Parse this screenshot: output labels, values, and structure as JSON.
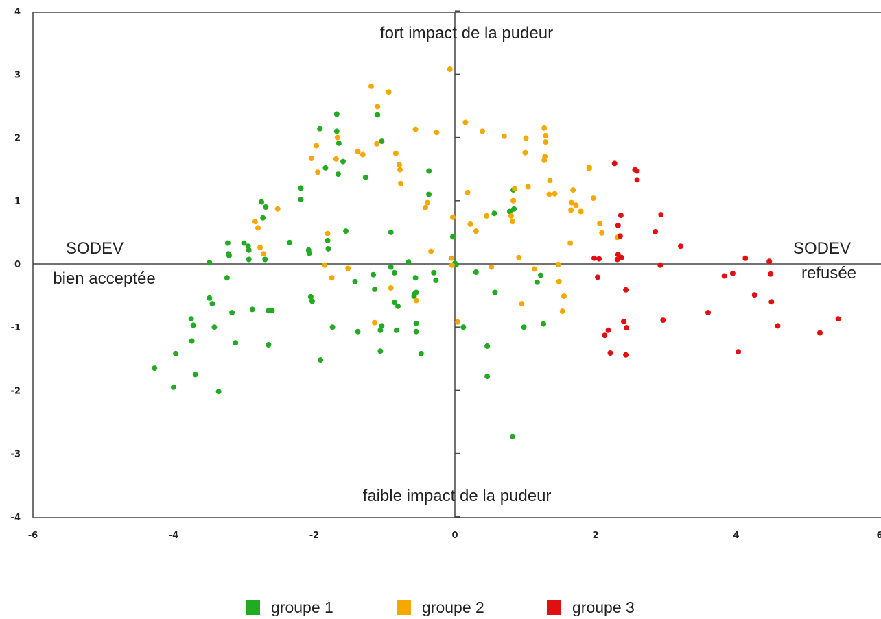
{
  "chart_data": {
    "type": "scatter",
    "title": "",
    "xlabel": "",
    "ylabel": "",
    "xlim": [
      -6,
      6
    ],
    "ylim": [
      -4,
      4
    ],
    "x_ticks": [
      "-6",
      "-4",
      "-2",
      "0",
      "2",
      "4",
      "6"
    ],
    "y_ticks": [
      "4",
      "3",
      "2",
      "1",
      "0",
      "-1",
      "-2",
      "-3",
      "-4"
    ],
    "grid": false,
    "legend_position": "bottom",
    "annotations": {
      "top": "fort impact de la pudeur",
      "bottom": "faible impact de la pudeur",
      "left_line1": "SODEV",
      "left_line2": "bien acceptée",
      "right_line1": "SODEV",
      "right_line2": "refusée"
    },
    "series": [
      {
        "name": "groupe 1",
        "color": "#22aa22",
        "points": [
          [
            -4.27,
            -1.65
          ],
          [
            -4.0,
            -1.95
          ],
          [
            -3.97,
            -1.42
          ],
          [
            -3.75,
            -0.87
          ],
          [
            -3.72,
            -0.97
          ],
          [
            -3.74,
            -1.22
          ],
          [
            -3.69,
            -1.75
          ],
          [
            -3.49,
            0.02
          ],
          [
            -3.49,
            -0.54
          ],
          [
            -3.45,
            -0.63
          ],
          [
            -3.42,
            -1.0
          ],
          [
            -3.36,
            -2.02
          ],
          [
            -3.23,
            0.33
          ],
          [
            -3.22,
            0.16
          ],
          [
            -3.21,
            0.13
          ],
          [
            -3.24,
            -0.22
          ],
          [
            -3.17,
            -0.77
          ],
          [
            -3.12,
            -1.25
          ],
          [
            -3.0,
            0.33
          ],
          [
            -2.94,
            0.28
          ],
          [
            -2.93,
            0.22
          ],
          [
            -2.93,
            0.07
          ],
          [
            -2.88,
            -0.72
          ],
          [
            -2.75,
            0.98
          ],
          [
            -2.73,
            0.73
          ],
          [
            -2.69,
            0.9
          ],
          [
            -2.7,
            0.07
          ],
          [
            -2.65,
            -0.74
          ],
          [
            -2.6,
            -0.74
          ],
          [
            -2.65,
            -1.28
          ],
          [
            -2.35,
            0.34
          ],
          [
            -2.19,
            1.2
          ],
          [
            -2.19,
            1.02
          ],
          [
            -2.08,
            0.22
          ],
          [
            -2.07,
            0.17
          ],
          [
            -2.05,
            -0.52
          ],
          [
            -2.03,
            -0.59
          ],
          [
            -1.92,
            2.14
          ],
          [
            -1.91,
            -1.52
          ],
          [
            -1.84,
            1.52
          ],
          [
            -1.81,
            0.37
          ],
          [
            -1.8,
            0.24
          ],
          [
            -1.74,
            -1.0
          ],
          [
            -1.68,
            2.37
          ],
          [
            -1.68,
            2.1
          ],
          [
            -1.65,
            1.91
          ],
          [
            -1.66,
            1.42
          ],
          [
            -1.59,
            1.62
          ],
          [
            -1.55,
            0.52
          ],
          [
            -1.42,
            -0.28
          ],
          [
            -1.38,
            -1.07
          ],
          [
            -1.27,
            1.37
          ],
          [
            -1.16,
            -0.17
          ],
          [
            -1.14,
            -0.4
          ],
          [
            -1.1,
            2.36
          ],
          [
            -1.04,
            1.94
          ],
          [
            -1.04,
            -0.98
          ],
          [
            -1.06,
            -1.05
          ],
          [
            -1.06,
            -1.38
          ],
          [
            -0.91,
            0.5
          ],
          [
            -0.91,
            -0.05
          ],
          [
            -0.86,
            -0.61
          ],
          [
            -0.86,
            -0.14
          ],
          [
            -0.81,
            -0.67
          ],
          [
            -0.83,
            -1.05
          ],
          [
            -0.66,
            0.03
          ],
          [
            -0.56,
            -0.22
          ],
          [
            -0.57,
            -0.47
          ],
          [
            -0.58,
            -0.51
          ],
          [
            -0.55,
            -0.45
          ],
          [
            -0.55,
            -0.94
          ],
          [
            -0.55,
            -1.07
          ],
          [
            -0.48,
            -1.42
          ],
          [
            -0.37,
            1.47
          ],
          [
            -0.37,
            1.1
          ],
          [
            -0.3,
            -0.14
          ],
          [
            -0.27,
            -0.26
          ],
          [
            -0.03,
            0.43
          ],
          [
            0.0,
            0.01
          ],
          [
            0.02,
            -0.01
          ],
          [
            0.12,
            -1.0
          ],
          [
            0.3,
            -0.13
          ],
          [
            0.46,
            -1.3
          ],
          [
            0.46,
            -1.78
          ],
          [
            0.56,
            0.8
          ],
          [
            0.57,
            -0.45
          ],
          [
            0.78,
            0.83
          ],
          [
            0.83,
            1.17
          ],
          [
            0.84,
            0.87
          ],
          [
            0.82,
            -2.73
          ],
          [
            0.98,
            -1.0
          ],
          [
            1.17,
            -0.29
          ],
          [
            1.22,
            -0.18
          ],
          [
            1.26,
            -0.95
          ]
        ]
      },
      {
        "name": "groupe 2",
        "color": "#f5a800",
        "points": [
          [
            -2.84,
            0.67
          ],
          [
            -2.8,
            0.57
          ],
          [
            -2.77,
            0.26
          ],
          [
            -2.72,
            0.16
          ],
          [
            -2.52,
            0.87
          ],
          [
            -2.04,
            1.67
          ],
          [
            -1.97,
            1.87
          ],
          [
            -1.95,
            1.45
          ],
          [
            -1.85,
            -0.02
          ],
          [
            -1.81,
            0.48
          ],
          [
            -1.75,
            -0.22
          ],
          [
            -1.69,
            1.66
          ],
          [
            -1.67,
            2.0
          ],
          [
            -1.52,
            -0.07
          ],
          [
            -1.38,
            1.78
          ],
          [
            -1.31,
            1.73
          ],
          [
            -1.19,
            2.81
          ],
          [
            -1.14,
            -0.93
          ],
          [
            -1.1,
            2.49
          ],
          [
            -1.11,
            1.9
          ],
          [
            -0.91,
            -0.38
          ],
          [
            -0.94,
            2.72
          ],
          [
            -0.84,
            1.75
          ],
          [
            -0.79,
            1.57
          ],
          [
            -0.77,
            1.27
          ],
          [
            -0.78,
            1.49
          ],
          [
            -0.56,
            2.13
          ],
          [
            -0.55,
            -0.58
          ],
          [
            -0.42,
            0.89
          ],
          [
            -0.39,
            0.97
          ],
          [
            -0.34,
            0.2
          ],
          [
            -0.26,
            2.08
          ],
          [
            -0.03,
            0.74
          ],
          [
            -0.05,
            0.09
          ],
          [
            -0.04,
            -0.02
          ],
          [
            -0.07,
            3.08
          ],
          [
            0.04,
            -0.92
          ],
          [
            0.15,
            2.24
          ],
          [
            0.18,
            1.13
          ],
          [
            0.22,
            0.63
          ],
          [
            0.3,
            0.52
          ],
          [
            0.39,
            2.1
          ],
          [
            0.45,
            0.76
          ],
          [
            0.52,
            -0.05
          ],
          [
            0.7,
            2.02
          ],
          [
            0.8,
            0.76
          ],
          [
            0.82,
            0.67
          ],
          [
            0.83,
            1.0
          ],
          [
            0.85,
            1.19
          ],
          [
            0.91,
            0.1
          ],
          [
            0.95,
            -0.63
          ],
          [
            1.01,
            1.99
          ],
          [
            1.0,
            1.76
          ],
          [
            1.04,
            1.22
          ],
          [
            1.13,
            -0.08
          ],
          [
            1.27,
            2.15
          ],
          [
            1.27,
            1.64
          ],
          [
            1.28,
            1.7
          ],
          [
            1.29,
            1.93
          ],
          [
            1.29,
            2.03
          ],
          [
            1.34,
            1.1
          ],
          [
            1.35,
            1.32
          ],
          [
            1.42,
            1.11
          ],
          [
            1.47,
            -0.01
          ],
          [
            1.48,
            -0.28
          ],
          [
            1.53,
            -0.75
          ],
          [
            1.55,
            -0.51
          ],
          [
            1.64,
            0.33
          ],
          [
            1.65,
            0.85
          ],
          [
            1.66,
            0.97
          ],
          [
            1.68,
            1.17
          ],
          [
            1.72,
            0.93
          ],
          [
            1.79,
            0.83
          ],
          [
            1.91,
            1.51
          ],
          [
            1.91,
            1.53
          ],
          [
            1.97,
            1.04
          ],
          [
            2.06,
            0.64
          ],
          [
            2.09,
            0.49
          ],
          [
            2.31,
            0.42
          ]
        ]
      },
      {
        "name": "groupe 3",
        "color": "#e01010",
        "points": [
          [
            1.98,
            0.09
          ],
          [
            2.05,
            0.08
          ],
          [
            2.03,
            -0.21
          ],
          [
            2.13,
            -1.13
          ],
          [
            2.18,
            -1.05
          ],
          [
            2.21,
            -1.41
          ],
          [
            2.27,
            1.59
          ],
          [
            2.32,
            0.61
          ],
          [
            2.31,
            0.07
          ],
          [
            2.32,
            0.15
          ],
          [
            2.36,
            0.77
          ],
          [
            2.35,
            0.44
          ],
          [
            2.37,
            0.1
          ],
          [
            2.4,
            -0.91
          ],
          [
            2.44,
            -1.01
          ],
          [
            2.43,
            -1.44
          ],
          [
            2.43,
            -0.41
          ],
          [
            2.56,
            1.49
          ],
          [
            2.59,
            1.47
          ],
          [
            2.59,
            1.33
          ],
          [
            2.85,
            0.51
          ],
          [
            2.93,
            0.78
          ],
          [
            2.92,
            -0.02
          ],
          [
            2.96,
            -0.89
          ],
          [
            3.21,
            0.28
          ],
          [
            3.6,
            -0.77
          ],
          [
            3.83,
            -0.19
          ],
          [
            3.95,
            -0.15
          ],
          [
            4.03,
            -1.39
          ],
          [
            4.13,
            0.09
          ],
          [
            4.26,
            -0.49
          ],
          [
            4.47,
            0.04
          ],
          [
            4.49,
            -0.16
          ],
          [
            4.5,
            -0.6
          ],
          [
            4.59,
            -0.98
          ],
          [
            5.19,
            -1.09
          ],
          [
            5.45,
            -0.87
          ]
        ]
      }
    ]
  },
  "legend": [
    {
      "label": "groupe 1",
      "color": "#22aa22"
    },
    {
      "label": "groupe 2",
      "color": "#f5a800"
    },
    {
      "label": "groupe 3",
      "color": "#e01010"
    }
  ]
}
